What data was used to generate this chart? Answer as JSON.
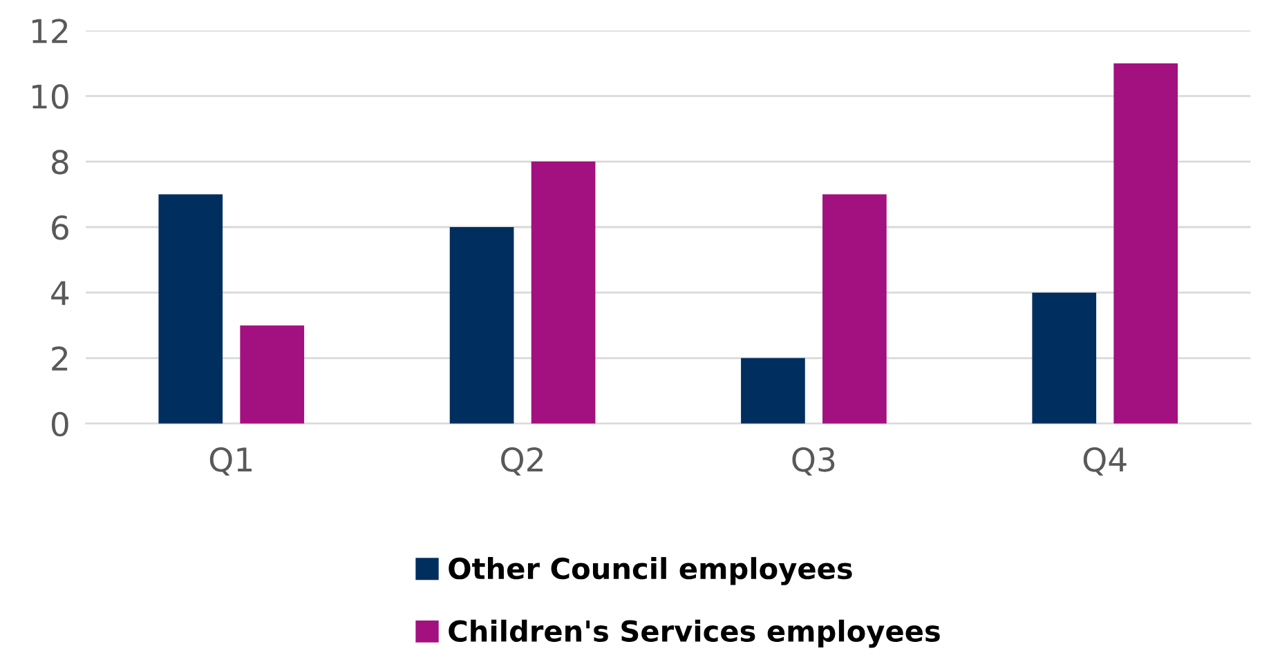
{
  "chart_data": {
    "type": "bar",
    "categories": [
      "Q1",
      "Q2",
      "Q3",
      "Q4"
    ],
    "series": [
      {
        "name": "Other Council employees",
        "color": "#002f5f",
        "values": [
          7,
          6,
          2,
          4
        ]
      },
      {
        "name": "Children's Services employees",
        "color": "#a3107f",
        "values": [
          3,
          8,
          7,
          11
        ]
      }
    ],
    "ylim": [
      0,
      12
    ],
    "yticks": [
      0,
      2,
      4,
      6,
      8,
      10,
      12
    ],
    "grid": "y",
    "legend": "bottom"
  }
}
